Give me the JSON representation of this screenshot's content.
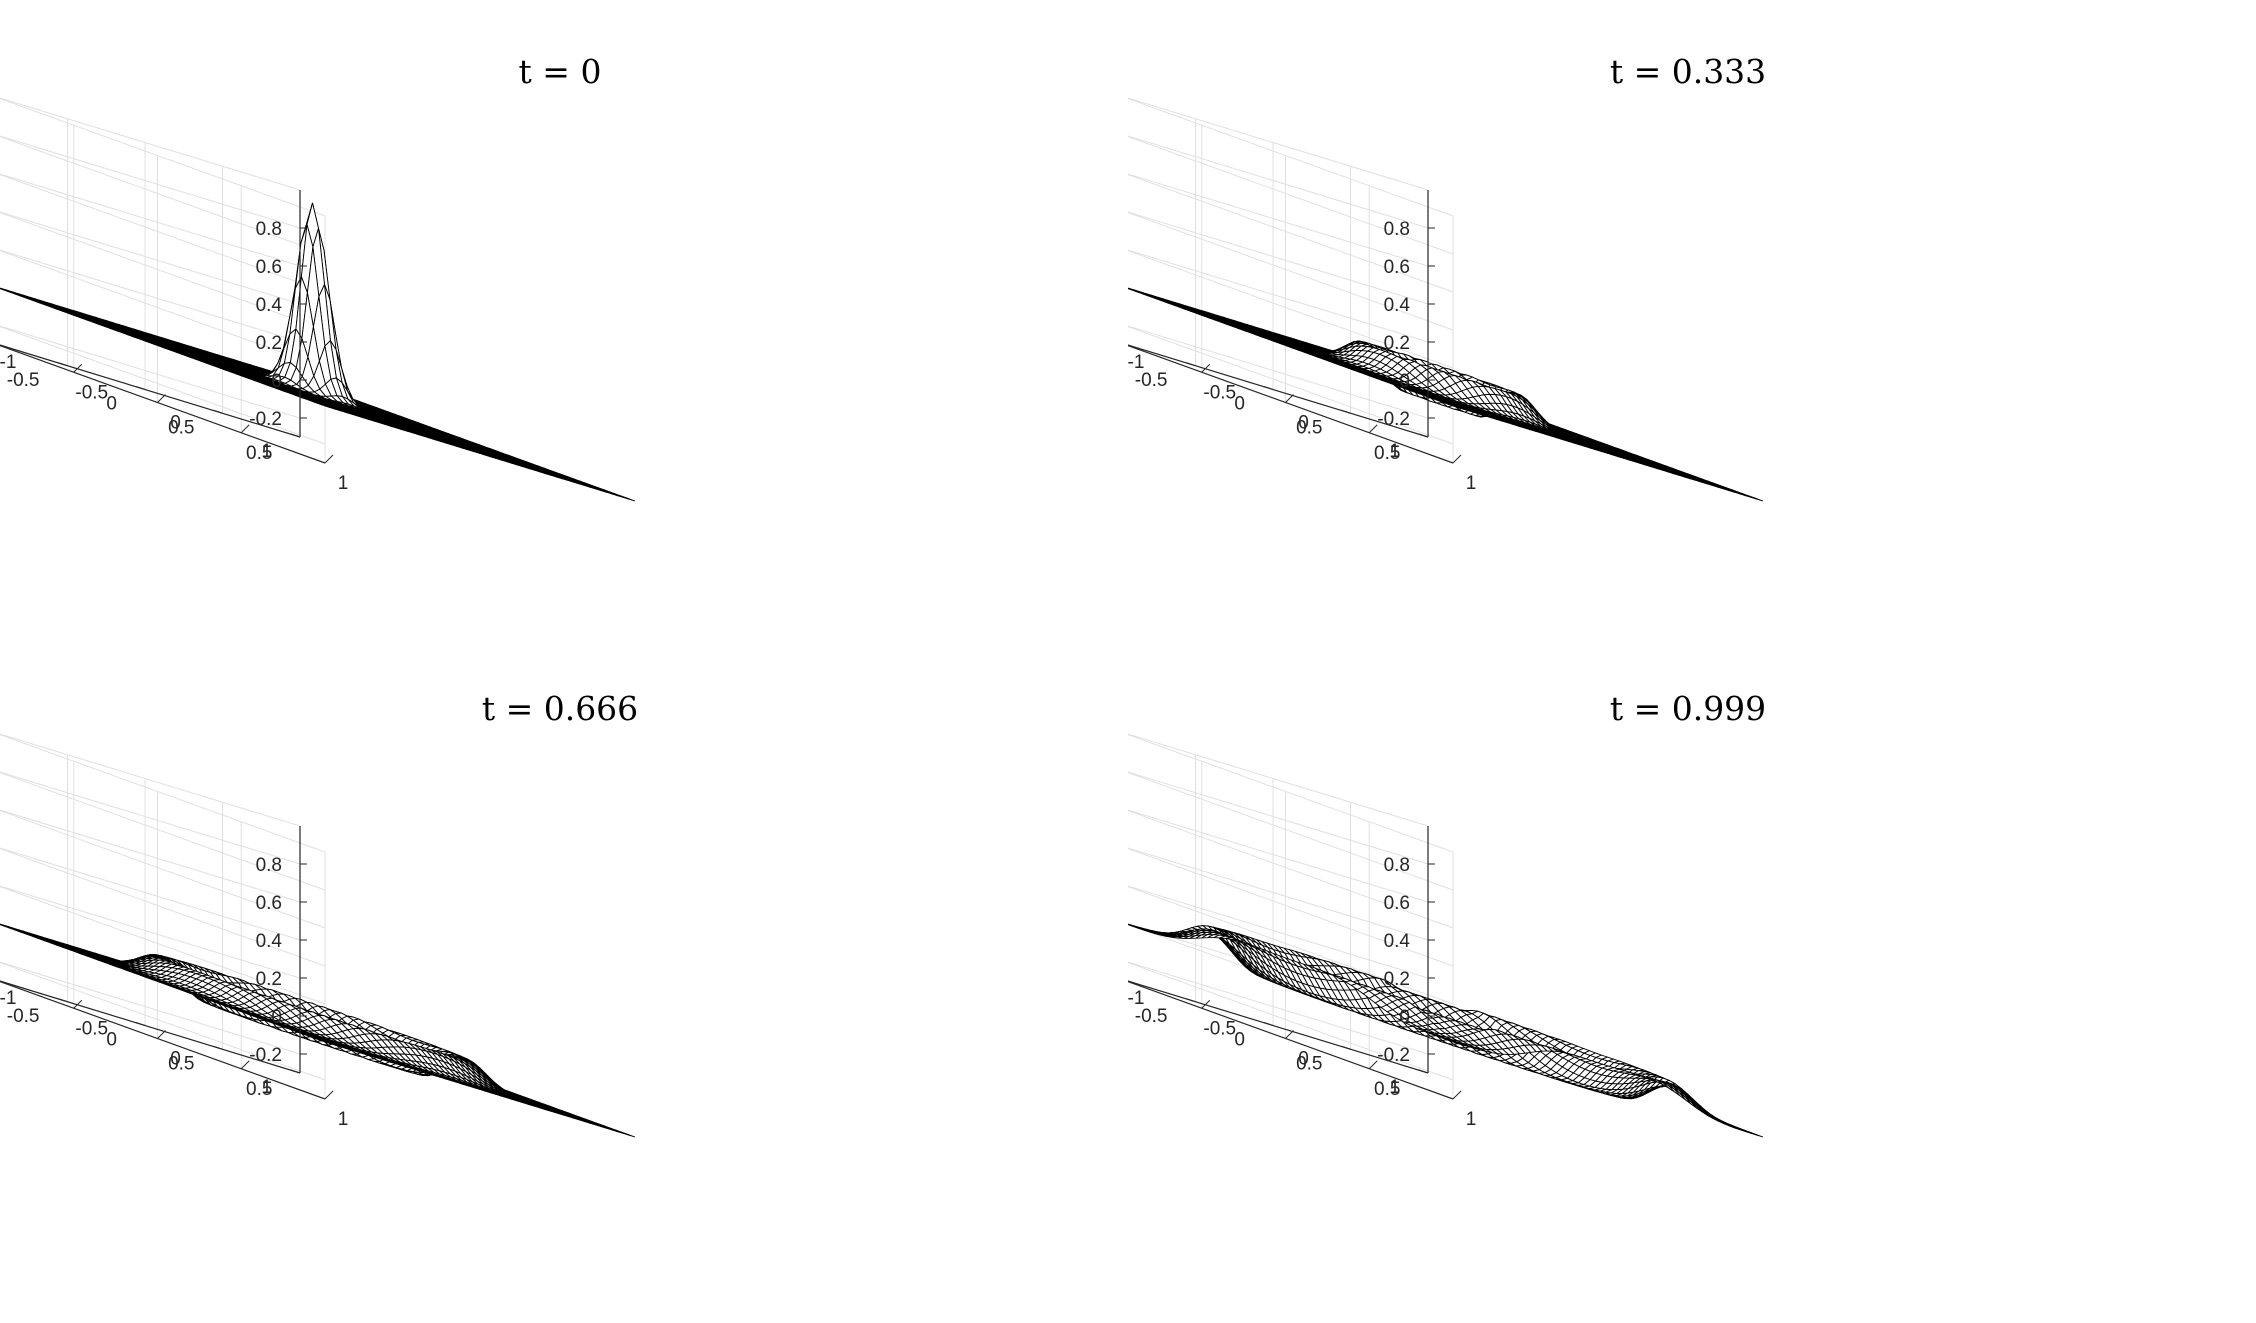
{
  "figure": {
    "background": "#ffffff",
    "mesh_edge_color": "#000000",
    "mesh_face_color": "#ffffff",
    "grid_color": "#e0e0e0"
  },
  "chart_data": [
    {
      "type": "surface",
      "title": "t = 0",
      "t": 0,
      "xlim": [
        -1,
        1
      ],
      "ylim": [
        -1,
        1
      ],
      "zlim": [
        -0.3,
        1
      ],
      "xticks": [
        "-1",
        "-0.5",
        "0",
        "0.5",
        "1"
      ],
      "yticks": [
        "-1",
        "-0.5",
        "0",
        "0.5",
        "1"
      ],
      "zticks": [
        "-0.2",
        "0",
        "0.2",
        "0.4",
        "0.6",
        "0.8"
      ],
      "grid": true,
      "surface": {
        "kind": "gaussian_peak",
        "center": [
          0,
          0
        ],
        "amplitude": 1.0,
        "width": 0.07
      }
    },
    {
      "type": "surface",
      "title": "t = 0.333",
      "t": 0.333,
      "xlim": [
        -1,
        1
      ],
      "ylim": [
        -1,
        1
      ],
      "zlim": [
        -0.3,
        1
      ],
      "xticks": [
        "-1",
        "-0.5",
        "0",
        "0.5",
        "1"
      ],
      "yticks": [
        "-1",
        "-0.5",
        "0",
        "0.5",
        "1"
      ],
      "zticks": [
        "-0.2",
        "0",
        "0.2",
        "0.4",
        "0.6",
        "0.8"
      ],
      "grid": true,
      "surface": {
        "kind": "ring_wave",
        "center": [
          0,
          0
        ],
        "radius": 0.33,
        "amplitude": 0.15,
        "width": 0.08
      }
    },
    {
      "type": "surface",
      "title": "t = 0.666",
      "t": 0.666,
      "xlim": [
        -1,
        1
      ],
      "ylim": [
        -1,
        1
      ],
      "zlim": [
        -0.3,
        1
      ],
      "xticks": [
        "-1",
        "-0.5",
        "0",
        "0.5",
        "1"
      ],
      "yticks": [
        "-1",
        "-0.5",
        "0",
        "0.5",
        "1"
      ],
      "zticks": [
        "-0.2",
        "0",
        "0.2",
        "0.4",
        "0.6",
        "0.8"
      ],
      "grid": true,
      "surface": {
        "kind": "ring_wave",
        "center": [
          0,
          0
        ],
        "radius": 0.66,
        "amplitude": 0.13,
        "width": 0.09
      }
    },
    {
      "type": "surface",
      "title": "t = 0.999",
      "t": 0.999,
      "xlim": [
        -1,
        1
      ],
      "ylim": [
        -1,
        1
      ],
      "zlim": [
        -0.3,
        1
      ],
      "xticks": [
        "-1",
        "-0.5",
        "0",
        "0.5",
        "1"
      ],
      "yticks": [
        "-1",
        "-0.5",
        "0",
        "0.5",
        "1"
      ],
      "zticks": [
        "-0.2",
        "0",
        "0.2",
        "0.4",
        "0.6",
        "0.8"
      ],
      "grid": true,
      "surface": {
        "kind": "ring_wave_reflecting",
        "center": [
          0,
          0
        ],
        "radius": 1.0,
        "amplitude": 0.12,
        "width": 0.1
      }
    }
  ]
}
